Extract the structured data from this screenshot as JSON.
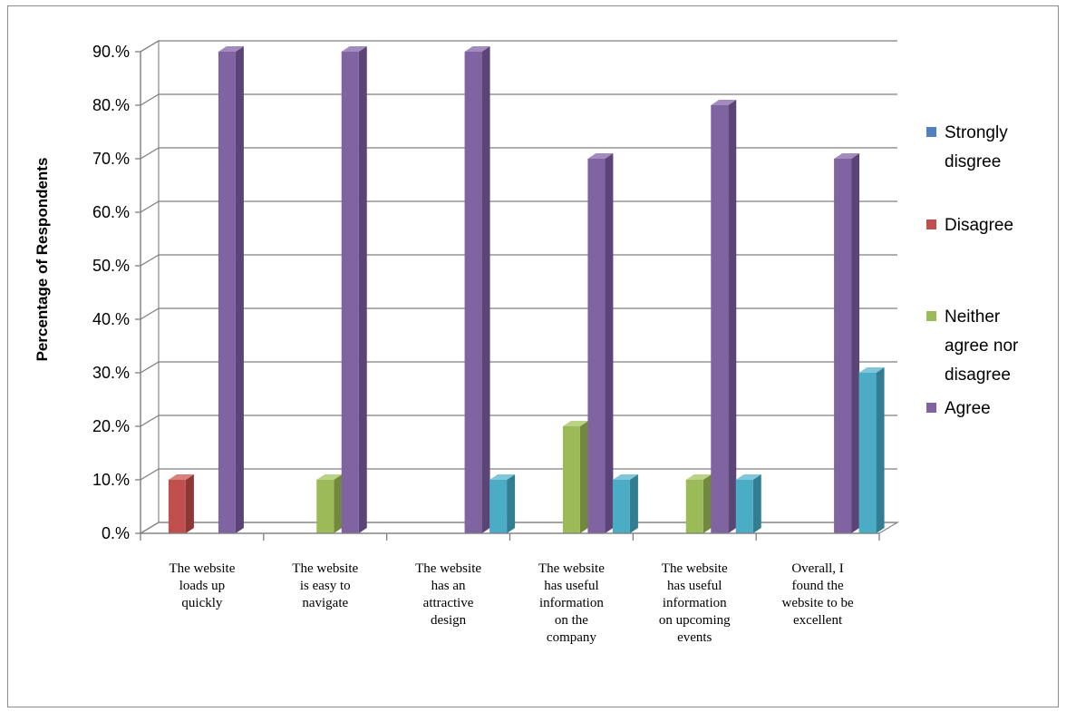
{
  "chart_data": {
    "type": "bar",
    "title": "",
    "xlabel": "",
    "ylabel": "Percentage of Respondents",
    "ylim": [
      0,
      0.9
    ],
    "yticks": [
      "0.%",
      "10.%",
      "20.%",
      "30.%",
      "40.%",
      "50.%",
      "60.%",
      "70.%",
      "80.%",
      "90.%"
    ],
    "grid": true,
    "legend_position": "right",
    "categories": [
      [
        "The website",
        "loads up",
        "quickly"
      ],
      [
        "The website",
        "is easy to",
        "navigate"
      ],
      [
        "The website",
        "has an",
        "attractive",
        "design"
      ],
      [
        "The website",
        "has useful",
        "information",
        "on the",
        "company"
      ],
      [
        "The website",
        "has useful",
        "information",
        "on upcoming",
        "events"
      ],
      [
        "Overall, I",
        "found the",
        "website to be",
        "excellent"
      ]
    ],
    "series": [
      {
        "name": [
          "Strongly",
          "disgree"
        ],
        "color": "#4f81bd",
        "side": "#3a6090",
        "top": "#7ea3d0",
        "values": [
          0,
          0,
          0,
          0,
          0,
          0
        ],
        "in_legend": true
      },
      {
        "name": [
          "Disagree"
        ],
        "color": "#c0504d",
        "side": "#8e3835",
        "top": "#d8807e",
        "values": [
          0.1,
          0,
          0,
          0,
          0,
          0
        ],
        "in_legend": true
      },
      {
        "name": [
          "Neither",
          "agree nor",
          "disagree"
        ],
        "color": "#9bbb59",
        "side": "#71893e",
        "top": "#b9d285",
        "values": [
          0,
          0.1,
          0,
          0.2,
          0.1,
          0
        ],
        "in_legend": true
      },
      {
        "name": [
          "Agree"
        ],
        "color": "#8064a2",
        "side": "#5b4576",
        "top": "#a28bbf",
        "values": [
          0.9,
          0.9,
          0.9,
          0.7,
          0.8,
          0.7
        ],
        "in_legend": true
      },
      {
        "name": [],
        "color": "#4bacc6",
        "side": "#327d91",
        "top": "#7fc6d8",
        "values": [
          0,
          0,
          0.1,
          0.1,
          0.1,
          0.3
        ],
        "in_legend": false
      }
    ]
  }
}
